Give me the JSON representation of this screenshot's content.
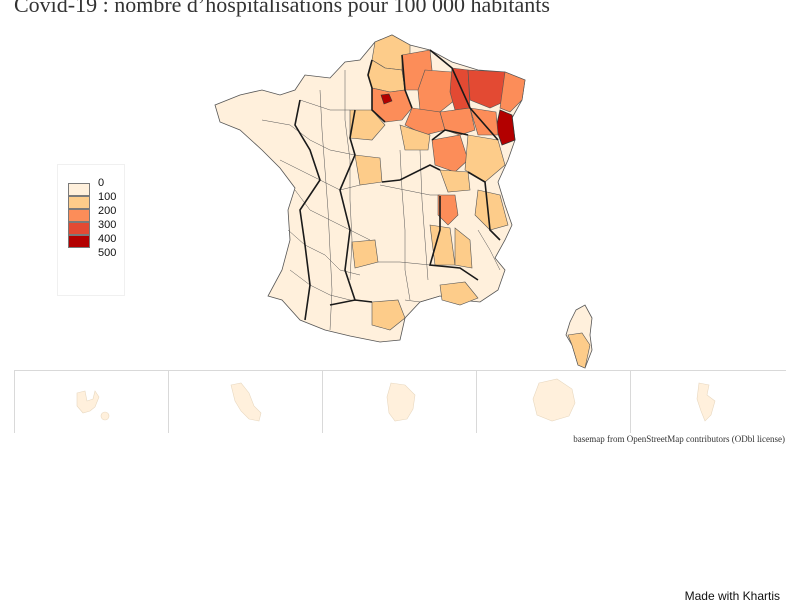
{
  "title": "Covid-19 : nombre d’hospitalisations pour 100 000 habitants",
  "legend": {
    "items": [
      {
        "label": "0",
        "color": "#fff0dc"
      },
      {
        "label": "100",
        "color": "#fdcc8a"
      },
      {
        "label": "200",
        "color": "#fc8d59"
      },
      {
        "label": "300",
        "color": "#e34a33"
      },
      {
        "label": "400",
        "color": "#b30000"
      },
      {
        "label": "500",
        "color": ""
      }
    ]
  },
  "map": {
    "land_color": "#fff0dc",
    "border_color": "#333333",
    "region_border_color": "#1a1a1a"
  },
  "insets": [
    {
      "territory_icon": "guadeloupe-shape"
    },
    {
      "territory_icon": "martinique-shape"
    },
    {
      "territory_icon": "guyane-shape"
    },
    {
      "territory_icon": "reunion-shape"
    },
    {
      "territory_icon": "mayotte-shape"
    }
  ],
  "attribution": "basemap from OpenStreetMap contributors (ODbl license)",
  "credit": "Made with Khartis"
}
